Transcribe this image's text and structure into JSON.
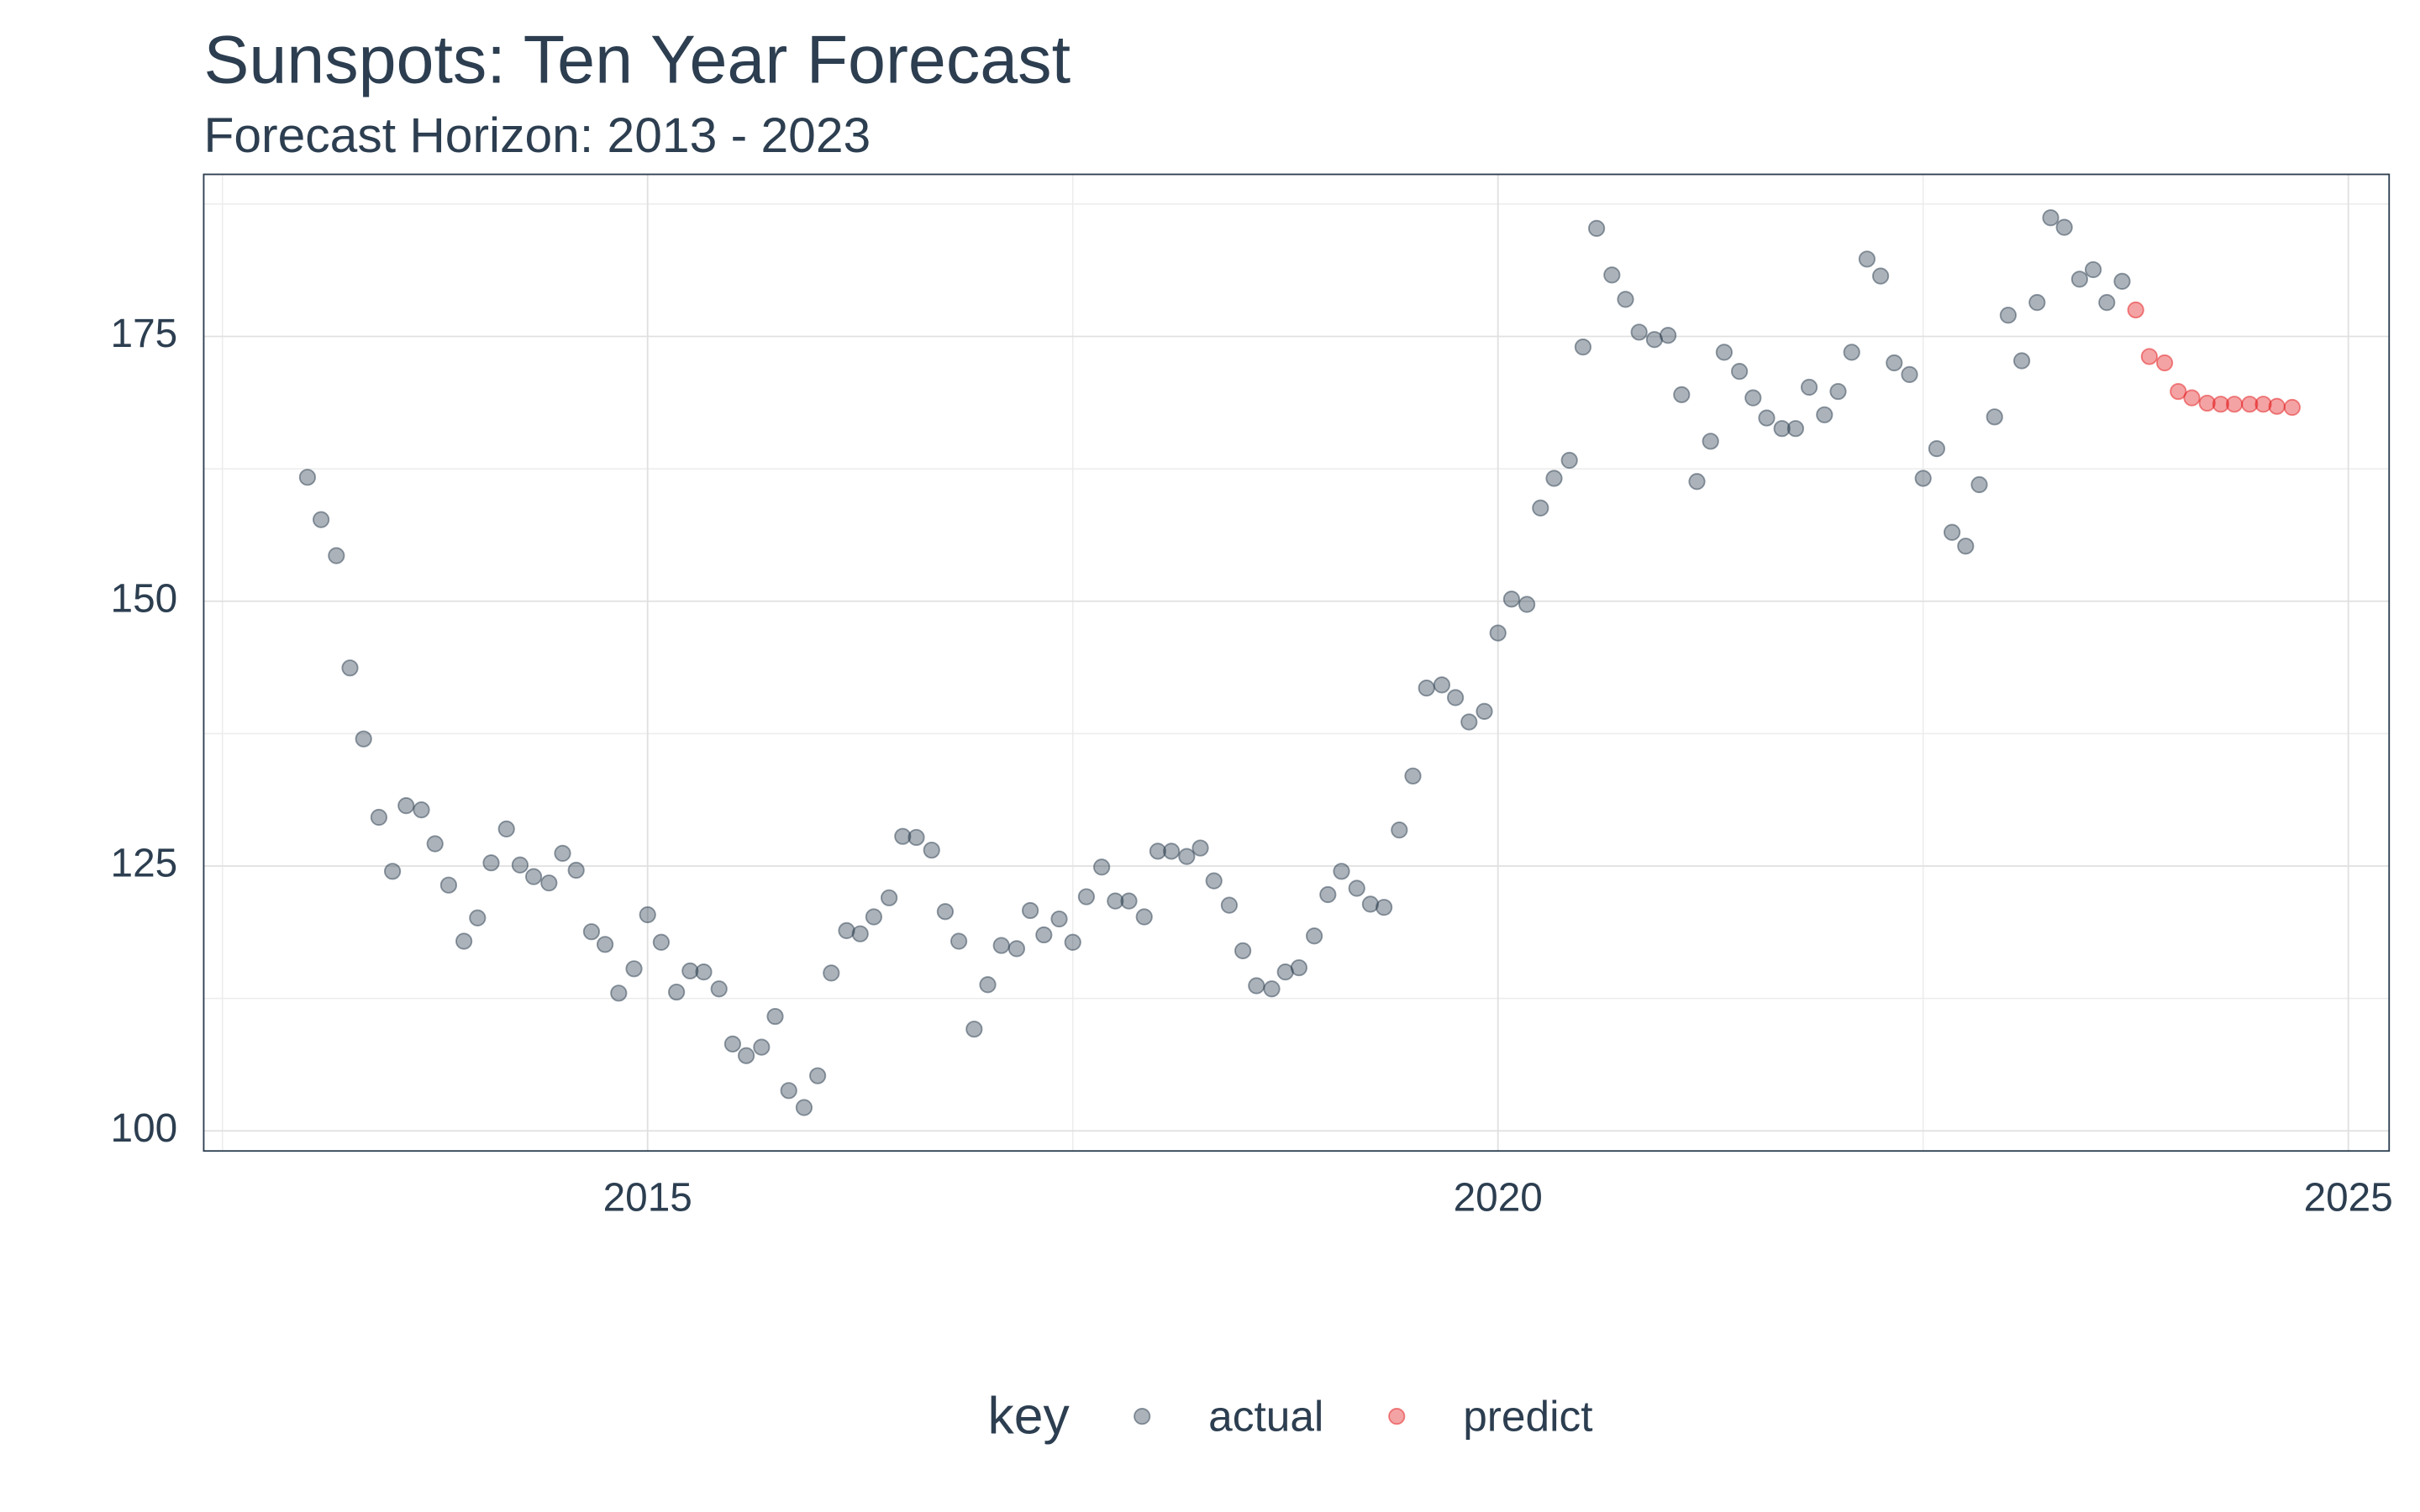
{
  "chart_data": {
    "type": "scatter",
    "title": "Sunspots: Ten Year Forecast",
    "subtitle": "Forecast Horizon: 2013 - 2023",
    "legend_title": "key",
    "legend_position": "bottom",
    "grid": true,
    "xlim": [
      2012.39,
      2025.24
    ],
    "xticks": [
      2015,
      2020,
      2025
    ],
    "x_minor_ticks": [
      2012.5,
      2017.5,
      2022.5
    ],
    "ylim": [
      98.1,
      190.3
    ],
    "yticks": [
      100,
      125,
      150,
      175
    ],
    "y_minor_ticks": [
      112.5,
      137.5,
      162.5,
      187.5
    ],
    "series": [
      {
        "name": "actual",
        "color": "#2c3e50",
        "x": [
          2013,
          2013.08,
          2013.17,
          2013.25,
          2013.33,
          2013.42,
          2013.5,
          2013.58,
          2013.67,
          2013.75,
          2013.83,
          2013.92,
          2014,
          2014.08,
          2014.17,
          2014.25,
          2014.33,
          2014.42,
          2014.5,
          2014.58,
          2014.67,
          2014.75,
          2014.83,
          2014.92,
          2015,
          2015.08,
          2015.17,
          2015.25,
          2015.33,
          2015.42,
          2015.5,
          2015.58,
          2015.67,
          2015.75,
          2015.83,
          2015.92,
          2016,
          2016.08,
          2016.17,
          2016.25,
          2016.33,
          2016.42,
          2016.5,
          2016.58,
          2016.67,
          2016.75,
          2016.83,
          2016.92,
          2017,
          2017.08,
          2017.17,
          2017.25,
          2017.33,
          2017.42,
          2017.5,
          2017.58,
          2017.67,
          2017.75,
          2017.83,
          2017.92,
          2018,
          2018.08,
          2018.17,
          2018.25,
          2018.33,
          2018.42,
          2018.5,
          2018.58,
          2018.67,
          2018.75,
          2018.83,
          2018.92,
          2019,
          2019.08,
          2019.17,
          2019.25,
          2019.33,
          2019.42,
          2019.5,
          2019.58,
          2019.67,
          2019.75,
          2019.83,
          2019.92,
          2020,
          2020.08,
          2020.17,
          2020.25,
          2020.33,
          2020.42,
          2020.5,
          2020.58,
          2020.67,
          2020.75,
          2020.83,
          2020.92,
          2021,
          2021.08,
          2021.17,
          2021.25,
          2021.33,
          2021.42,
          2021.5,
          2021.58,
          2021.67,
          2021.75,
          2021.83,
          2021.92,
          2022,
          2022.08,
          2022.17,
          2022.25,
          2022.33,
          2022.42,
          2022.5,
          2022.58,
          2022.67,
          2022.75,
          2022.83,
          2022.92,
          2023,
          2023.08,
          2023.17,
          2023.25,
          2023.33,
          2023.42,
          2023.5,
          2023.58,
          2023.67
        ],
        "values": [
          161.7,
          157.7,
          154.3,
          143.7,
          137.0,
          129.6,
          124.5,
          130.7,
          130.3,
          127.1,
          123.2,
          117.9,
          120.1,
          125.3,
          128.5,
          125.1,
          124.0,
          123.4,
          126.2,
          124.6,
          118.8,
          117.6,
          113.0,
          115.3,
          120.4,
          117.8,
          113.1,
          115.1,
          115.0,
          113.4,
          108.2,
          107.1,
          107.9,
          110.8,
          103.8,
          102.2,
          105.2,
          114.9,
          118.9,
          118.6,
          120.2,
          122.0,
          127.8,
          127.7,
          126.5,
          120.7,
          117.9,
          109.6,
          113.8,
          117.5,
          117.2,
          120.8,
          118.5,
          120.0,
          117.8,
          122.1,
          124.9,
          121.7,
          121.7,
          120.2,
          126.4,
          126.4,
          125.9,
          126.7,
          123.6,
          121.3,
          117.0,
          113.7,
          113.4,
          115.0,
          115.4,
          118.4,
          122.3,
          124.5,
          122.9,
          121.4,
          121.1,
          128.4,
          133.5,
          141.8,
          142.1,
          140.9,
          138.6,
          139.6,
          147.0,
          150.2,
          149.7,
          158.8,
          161.6,
          163.3,
          174.0,
          185.2,
          180.8,
          178.5,
          175.4,
          174.7,
          175.1,
          169.5,
          161.3,
          165.1,
          173.5,
          171.7,
          169.2,
          167.3,
          166.3,
          166.3,
          170.2,
          167.6,
          169.8,
          173.5,
          182.3,
          180.7,
          172.5,
          171.4,
          161.6,
          164.4,
          156.5,
          155.2,
          161.0,
          167.4,
          177.0,
          172.7,
          178.2,
          186.2,
          185.3,
          180.4,
          181.3,
          178.2,
          180.2
        ]
      },
      {
        "name": "predict",
        "color": "#e31a1c",
        "x": [
          2023.75,
          2023.83,
          2023.92,
          2024,
          2024.08,
          2024.17,
          2024.25,
          2024.33,
          2024.42,
          2024.5,
          2024.58,
          2024.67
        ],
        "values": [
          177.5,
          173.1,
          172.5,
          169.8,
          169.2,
          168.7,
          168.6,
          168.6,
          168.6,
          168.6,
          168.4,
          168.3
        ]
      }
    ]
  }
}
